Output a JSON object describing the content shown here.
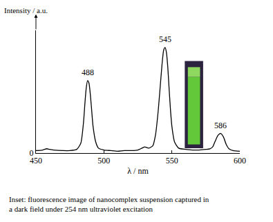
{
  "chart_data": {
    "type": "line",
    "xlabel": "λ / nm",
    "ylabel": "Intensity / a.u.",
    "caption": "Inset: fluorescence image of nanocomplex suspension captured in a dark field under 254 nm ultraviolet excitation",
    "x": [
      450,
      455,
      458,
      460,
      463,
      470,
      475,
      480,
      483,
      485,
      486,
      487,
      488,
      489,
      490,
      491,
      492,
      494,
      496,
      500,
      505,
      510,
      515,
      520,
      525,
      528,
      530,
      533,
      536,
      538,
      540,
      542,
      543,
      544,
      545,
      546,
      547,
      548,
      549,
      550,
      552,
      555,
      560,
      565,
      570,
      575,
      578,
      580,
      582,
      584,
      586,
      588,
      590,
      592,
      595,
      600
    ],
    "values": [
      2,
      2.5,
      3.5,
      3,
      2.5,
      2,
      2,
      3,
      8,
      25,
      40,
      53,
      59,
      57,
      48,
      35,
      22,
      9,
      4,
      2.5,
      2,
      1.5,
      2,
      2,
      2.5,
      4,
      5,
      4,
      6,
      15,
      35,
      62,
      75,
      84,
      86,
      82,
      70,
      52,
      35,
      22,
      9,
      4,
      3,
      2.5,
      2.5,
      3,
      3.5,
      5,
      10,
      14.5,
      16,
      13,
      7,
      3.5,
      2,
      1.5
    ],
    "color": "#000000",
    "xlim": [
      450,
      600
    ],
    "xticks": [
      450,
      500,
      550,
      600
    ],
    "ylim": [
      0,
      100
    ],
    "yticks": [
      0
    ],
    "grid": false,
    "annotations": [
      {
        "x": 488,
        "y": 59,
        "text": "488"
      },
      {
        "x": 545,
        "y": 86,
        "text": "545"
      },
      {
        "x": 586,
        "y": 16,
        "text": "586"
      }
    ]
  }
}
